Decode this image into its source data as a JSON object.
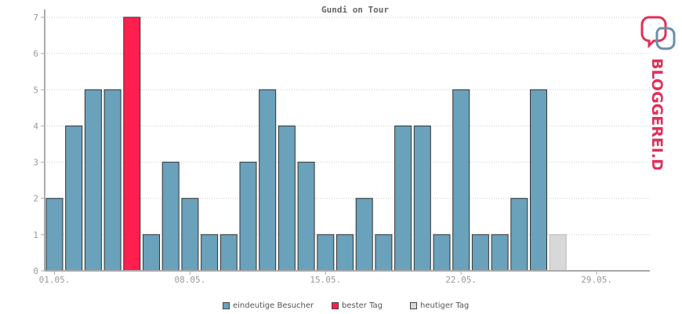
{
  "chart_data": {
    "type": "bar",
    "title": "Gundi on Tour",
    "xlabel": "",
    "ylabel": "",
    "ylim": [
      0,
      7
    ],
    "yticks": [
      0,
      1,
      2,
      3,
      4,
      5,
      6,
      7
    ],
    "days": [
      1,
      2,
      3,
      4,
      5,
      6,
      7,
      8,
      9,
      10,
      11,
      12,
      13,
      14,
      15,
      16,
      17,
      18,
      19,
      20,
      21,
      22,
      23,
      24,
      25,
      26,
      27,
      28,
      29,
      30,
      31
    ],
    "values": [
      2,
      4,
      5,
      5,
      7,
      1,
      3,
      2,
      1,
      1,
      3,
      5,
      4,
      3,
      1,
      1,
      2,
      1,
      4,
      4,
      1,
      5,
      1,
      1,
      2,
      5,
      1,
      0,
      0,
      0,
      0
    ],
    "bar_kinds": [
      "normal",
      "normal",
      "normal",
      "normal",
      "best",
      "normal",
      "normal",
      "normal",
      "normal",
      "normal",
      "normal",
      "normal",
      "normal",
      "normal",
      "normal",
      "normal",
      "normal",
      "normal",
      "normal",
      "normal",
      "normal",
      "normal",
      "normal",
      "normal",
      "normal",
      "normal",
      "today",
      "none",
      "none",
      "none",
      "none"
    ],
    "xtick_labels": [
      {
        "day": 1,
        "label": "01.05."
      },
      {
        "day": 8,
        "label": "08.05."
      },
      {
        "day": 15,
        "label": "15.05."
      },
      {
        "day": 22,
        "label": "22.05."
      },
      {
        "day": 29,
        "label": "29.05."
      }
    ],
    "grid": true,
    "legend_position": "bottom-center",
    "legend": [
      {
        "label": "eindeutige Besucher",
        "color": "#6aa1bb"
      },
      {
        "label": "bester Tag",
        "color": "#ff1f4f"
      },
      {
        "label": "heutiger Tag",
        "color": "#d8d8d8"
      }
    ],
    "colors": {
      "normal": "#6aa1bb",
      "best": "#ff1f4f",
      "today": "#d8d8d8"
    }
  },
  "logo": {
    "text": "BLOGGEREI.DE"
  }
}
